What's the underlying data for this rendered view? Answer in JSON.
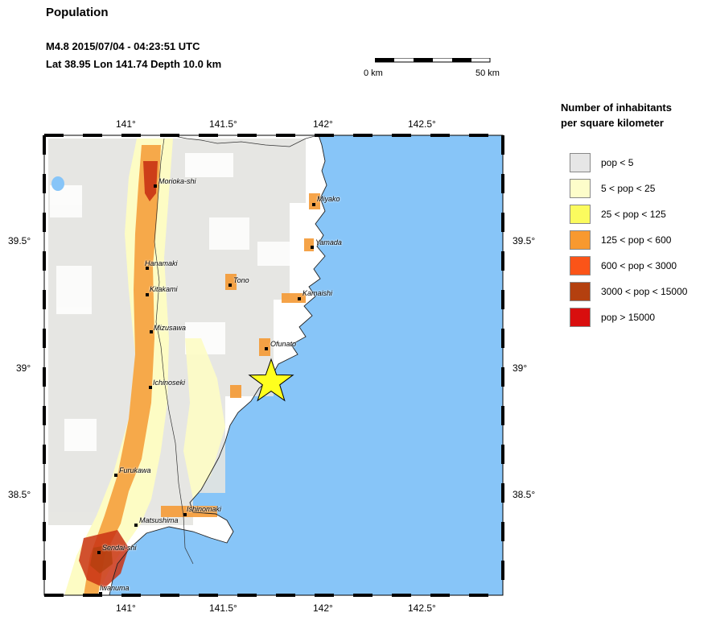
{
  "header": {
    "title": "Population",
    "event": "M4.8  2015/07/04 - 04:23:51 UTC",
    "location": "Lat 38.95     Lon 141.74      Depth  10.0 km"
  },
  "scale": {
    "min_label": "0 km",
    "max_label": "50 km"
  },
  "map": {
    "lon_labels": [
      "141°",
      "141.5°",
      "142°",
      "142.5°"
    ],
    "lat_labels": [
      "39.5°",
      "39°",
      "38.5°"
    ],
    "colors": {
      "ocean": "#87c5f8",
      "land": "#ffffff",
      "low": "#e4e4e0",
      "mid": "#fdfcc4",
      "orange": "#f59a35",
      "red": "#c93214",
      "epicenter": "#ffff1e"
    },
    "epicenter": {
      "symbol": "star-icon",
      "lat": 38.95,
      "lon": 141.74
    },
    "cities": [
      {
        "name": "Morioka-shi"
      },
      {
        "name": "Miyako"
      },
      {
        "name": "Yamada"
      },
      {
        "name": "Hanamaki"
      },
      {
        "name": "Tono"
      },
      {
        "name": "Kitakami"
      },
      {
        "name": "Kamaishi"
      },
      {
        "name": "Mizusawa"
      },
      {
        "name": "Ofunato"
      },
      {
        "name": "Ichinoseki"
      },
      {
        "name": "Furukawa"
      },
      {
        "name": "Ishinomaki"
      },
      {
        "name": "Matsushima"
      },
      {
        "name": "Sendai-shi"
      },
      {
        "name": "Iwanuma"
      }
    ]
  },
  "legend": {
    "title_line1": "Number of inhabitants",
    "title_line2": "per square kilometer",
    "items": [
      {
        "label": "pop < 5",
        "color": "#e6e6e6"
      },
      {
        "label": "5 < pop < 25",
        "color": "#fdfdca"
      },
      {
        "label": "25 < pop < 125",
        "color": "#fbfb5e"
      },
      {
        "label": "125 < pop < 600",
        "color": "#f8992f"
      },
      {
        "label": "600 < pop < 3000",
        "color": "#fb5418"
      },
      {
        "label": "3000 < pop < 15000",
        "color": "#b4400f"
      },
      {
        "label": "pop > 15000",
        "color": "#d90e0e"
      }
    ]
  }
}
